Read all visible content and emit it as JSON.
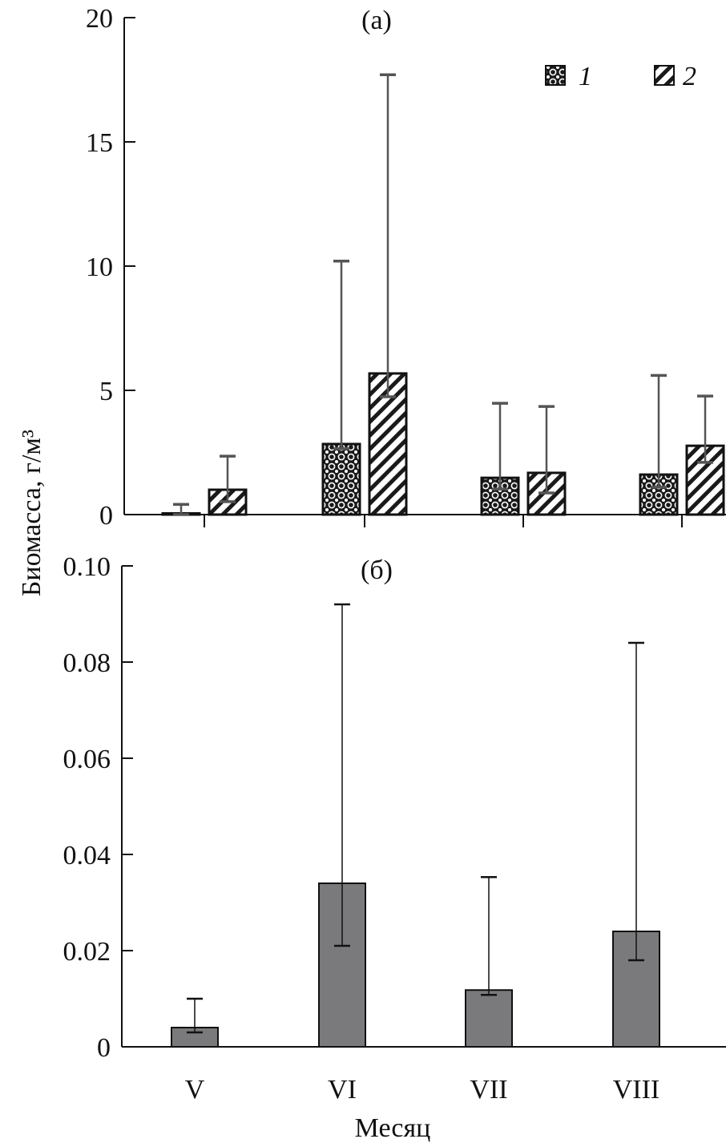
{
  "chart_data": [
    {
      "type": "bar",
      "title": "(a)",
      "categories": [
        "V",
        "VI",
        "VII",
        "VIII"
      ],
      "ylim": [
        0,
        20
      ],
      "yticks": [
        "0",
        "5",
        "10",
        "15",
        "20"
      ],
      "ytick_values": [
        0,
        5,
        10,
        15,
        20
      ],
      "legend_position": "top-right",
      "series": [
        {
          "name": "1",
          "values": [
            0.05,
            2.84,
            1.48,
            1.61
          ],
          "err_upper": [
            0.41,
            10.2,
            4.48,
            5.6
          ],
          "err_lower": [
            0.0,
            2.65,
            1.03,
            1.1
          ],
          "color": "#1a1a1a"
        },
        {
          "name": "2",
          "values": [
            1.0,
            5.68,
            1.68,
            2.77
          ],
          "err_upper": [
            2.35,
            17.7,
            4.35,
            4.77
          ],
          "err_lower": [
            0.52,
            4.74,
            0.87,
            2.1
          ],
          "color": "#1a1a1a"
        }
      ]
    },
    {
      "type": "bar",
      "title": "(б)",
      "categories": [
        "V",
        "VI",
        "VII",
        "VIII"
      ],
      "ylim": [
        0,
        0.1
      ],
      "yticks": [
        "0",
        "0.02",
        "0.04",
        "0.06",
        "0.08",
        "0.10"
      ],
      "ytick_values": [
        0,
        0.02,
        0.04,
        0.06,
        0.08,
        0.1
      ],
      "values": [
        0.004,
        0.034,
        0.0118,
        0.024
      ],
      "err_upper": [
        0.01,
        0.092,
        0.0353,
        0.084
      ],
      "err_lower": [
        0.003,
        0.021,
        0.0108,
        0.018
      ],
      "color": "#7a7a7d"
    }
  ],
  "ylabel": "Биомасса, г/м³",
  "xlabel": "Месяц"
}
